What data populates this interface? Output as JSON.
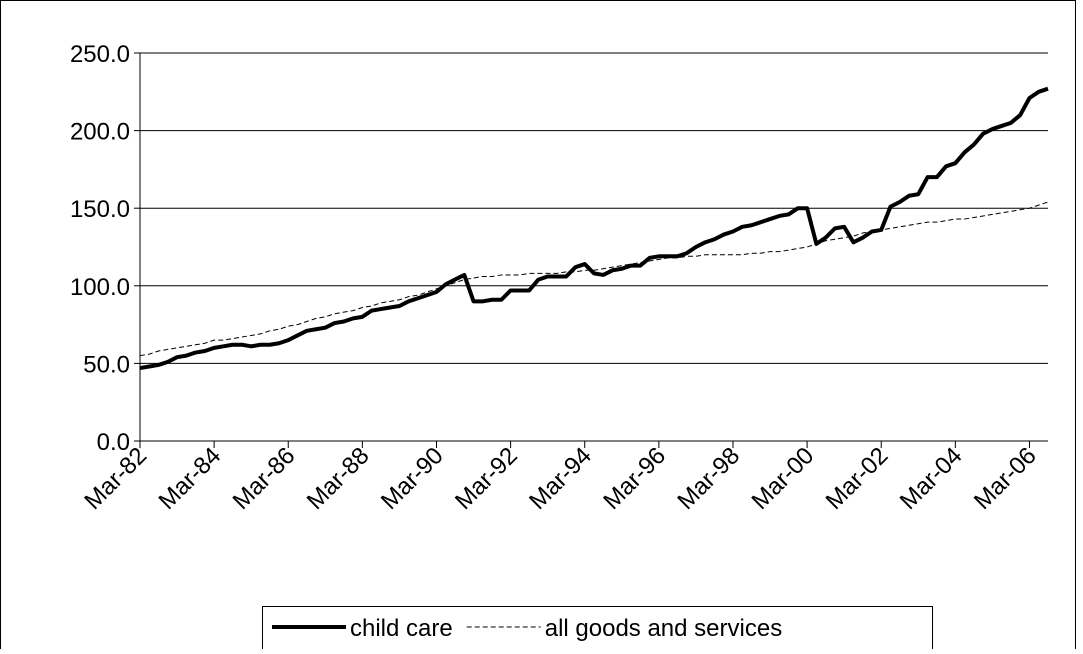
{
  "chart_data": {
    "type": "line",
    "categories": [
      "Mar-82",
      null,
      null,
      null,
      null,
      null,
      null,
      null,
      "Mar-84",
      null,
      null,
      null,
      null,
      null,
      null,
      null,
      "Mar-86",
      null,
      null,
      null,
      null,
      null,
      null,
      null,
      "Mar-88",
      null,
      null,
      null,
      null,
      null,
      null,
      null,
      "Mar-90",
      null,
      null,
      null,
      null,
      null,
      null,
      null,
      "Mar-92",
      null,
      null,
      null,
      null,
      null,
      null,
      null,
      "Mar-94",
      null,
      null,
      null,
      null,
      null,
      null,
      null,
      "Mar-96",
      null,
      null,
      null,
      null,
      null,
      null,
      null,
      "Mar-98",
      null,
      null,
      null,
      null,
      null,
      null,
      null,
      "Mar-00",
      null,
      null,
      null,
      null,
      null,
      null,
      null,
      "Mar-02",
      null,
      null,
      null,
      null,
      null,
      null,
      null,
      "Mar-04",
      null,
      null,
      null,
      null,
      null,
      null,
      null,
      "Mar-06",
      null,
      null
    ],
    "series": [
      {
        "name": "child care",
        "color": "#000000",
        "dash": false,
        "values": [
          47,
          48,
          49,
          51,
          54,
          55,
          57,
          58,
          60,
          61,
          62,
          62,
          61,
          62,
          62,
          63,
          65,
          68,
          71,
          72,
          73,
          76,
          77,
          79,
          80,
          84,
          85,
          86,
          87,
          90,
          92,
          94,
          96,
          101,
          104,
          107,
          90,
          90,
          91,
          91,
          97,
          97,
          97,
          104,
          106,
          106,
          106,
          112,
          114,
          108,
          107,
          110,
          111,
          113,
          113,
          118,
          119,
          119,
          119,
          121,
          125,
          128,
          130,
          133,
          135,
          138,
          139,
          141,
          143,
          145,
          146,
          150,
          150,
          127,
          131,
          137,
          138,
          128,
          131,
          135,
          136,
          151,
          154,
          158,
          159,
          170,
          170,
          177,
          179,
          186,
          191,
          198,
          201,
          203,
          205,
          210,
          221,
          225,
          227
        ]
      },
      {
        "name": "all goods and services",
        "color": "#000000",
        "dash": true,
        "values": [
          55,
          56,
          58,
          59,
          60,
          61,
          62,
          63,
          65,
          65,
          66,
          67,
          68,
          69,
          71,
          72,
          74,
          75,
          77,
          79,
          80,
          82,
          83,
          84,
          86,
          87,
          89,
          90,
          91,
          93,
          94,
          96,
          98,
          100,
          102,
          104,
          105,
          106,
          106,
          107,
          107,
          107,
          108,
          108,
          108,
          108,
          109,
          109,
          110,
          110,
          111,
          112,
          113,
          114,
          115,
          116,
          117,
          118,
          118,
          119,
          119,
          120,
          120,
          120,
          120,
          120,
          121,
          121,
          122,
          122,
          123,
          124,
          125,
          127,
          129,
          130,
          131,
          132,
          134,
          135,
          136,
          137,
          138,
          139,
          140,
          141,
          141,
          142,
          143,
          143,
          144,
          145,
          146,
          147,
          148,
          149,
          150,
          152,
          154
        ]
      }
    ],
    "ylim": [
      0,
      250
    ],
    "yticks": [
      {
        "value": 0,
        "label": "0.0"
      },
      {
        "value": 50,
        "label": "50.0"
      },
      {
        "value": 100,
        "label": "100.0"
      },
      {
        "value": 150,
        "label": "150.0"
      },
      {
        "value": 200,
        "label": "200.0"
      },
      {
        "value": 250,
        "label": "250.0"
      }
    ],
    "grid": true,
    "legend": "bottom"
  }
}
